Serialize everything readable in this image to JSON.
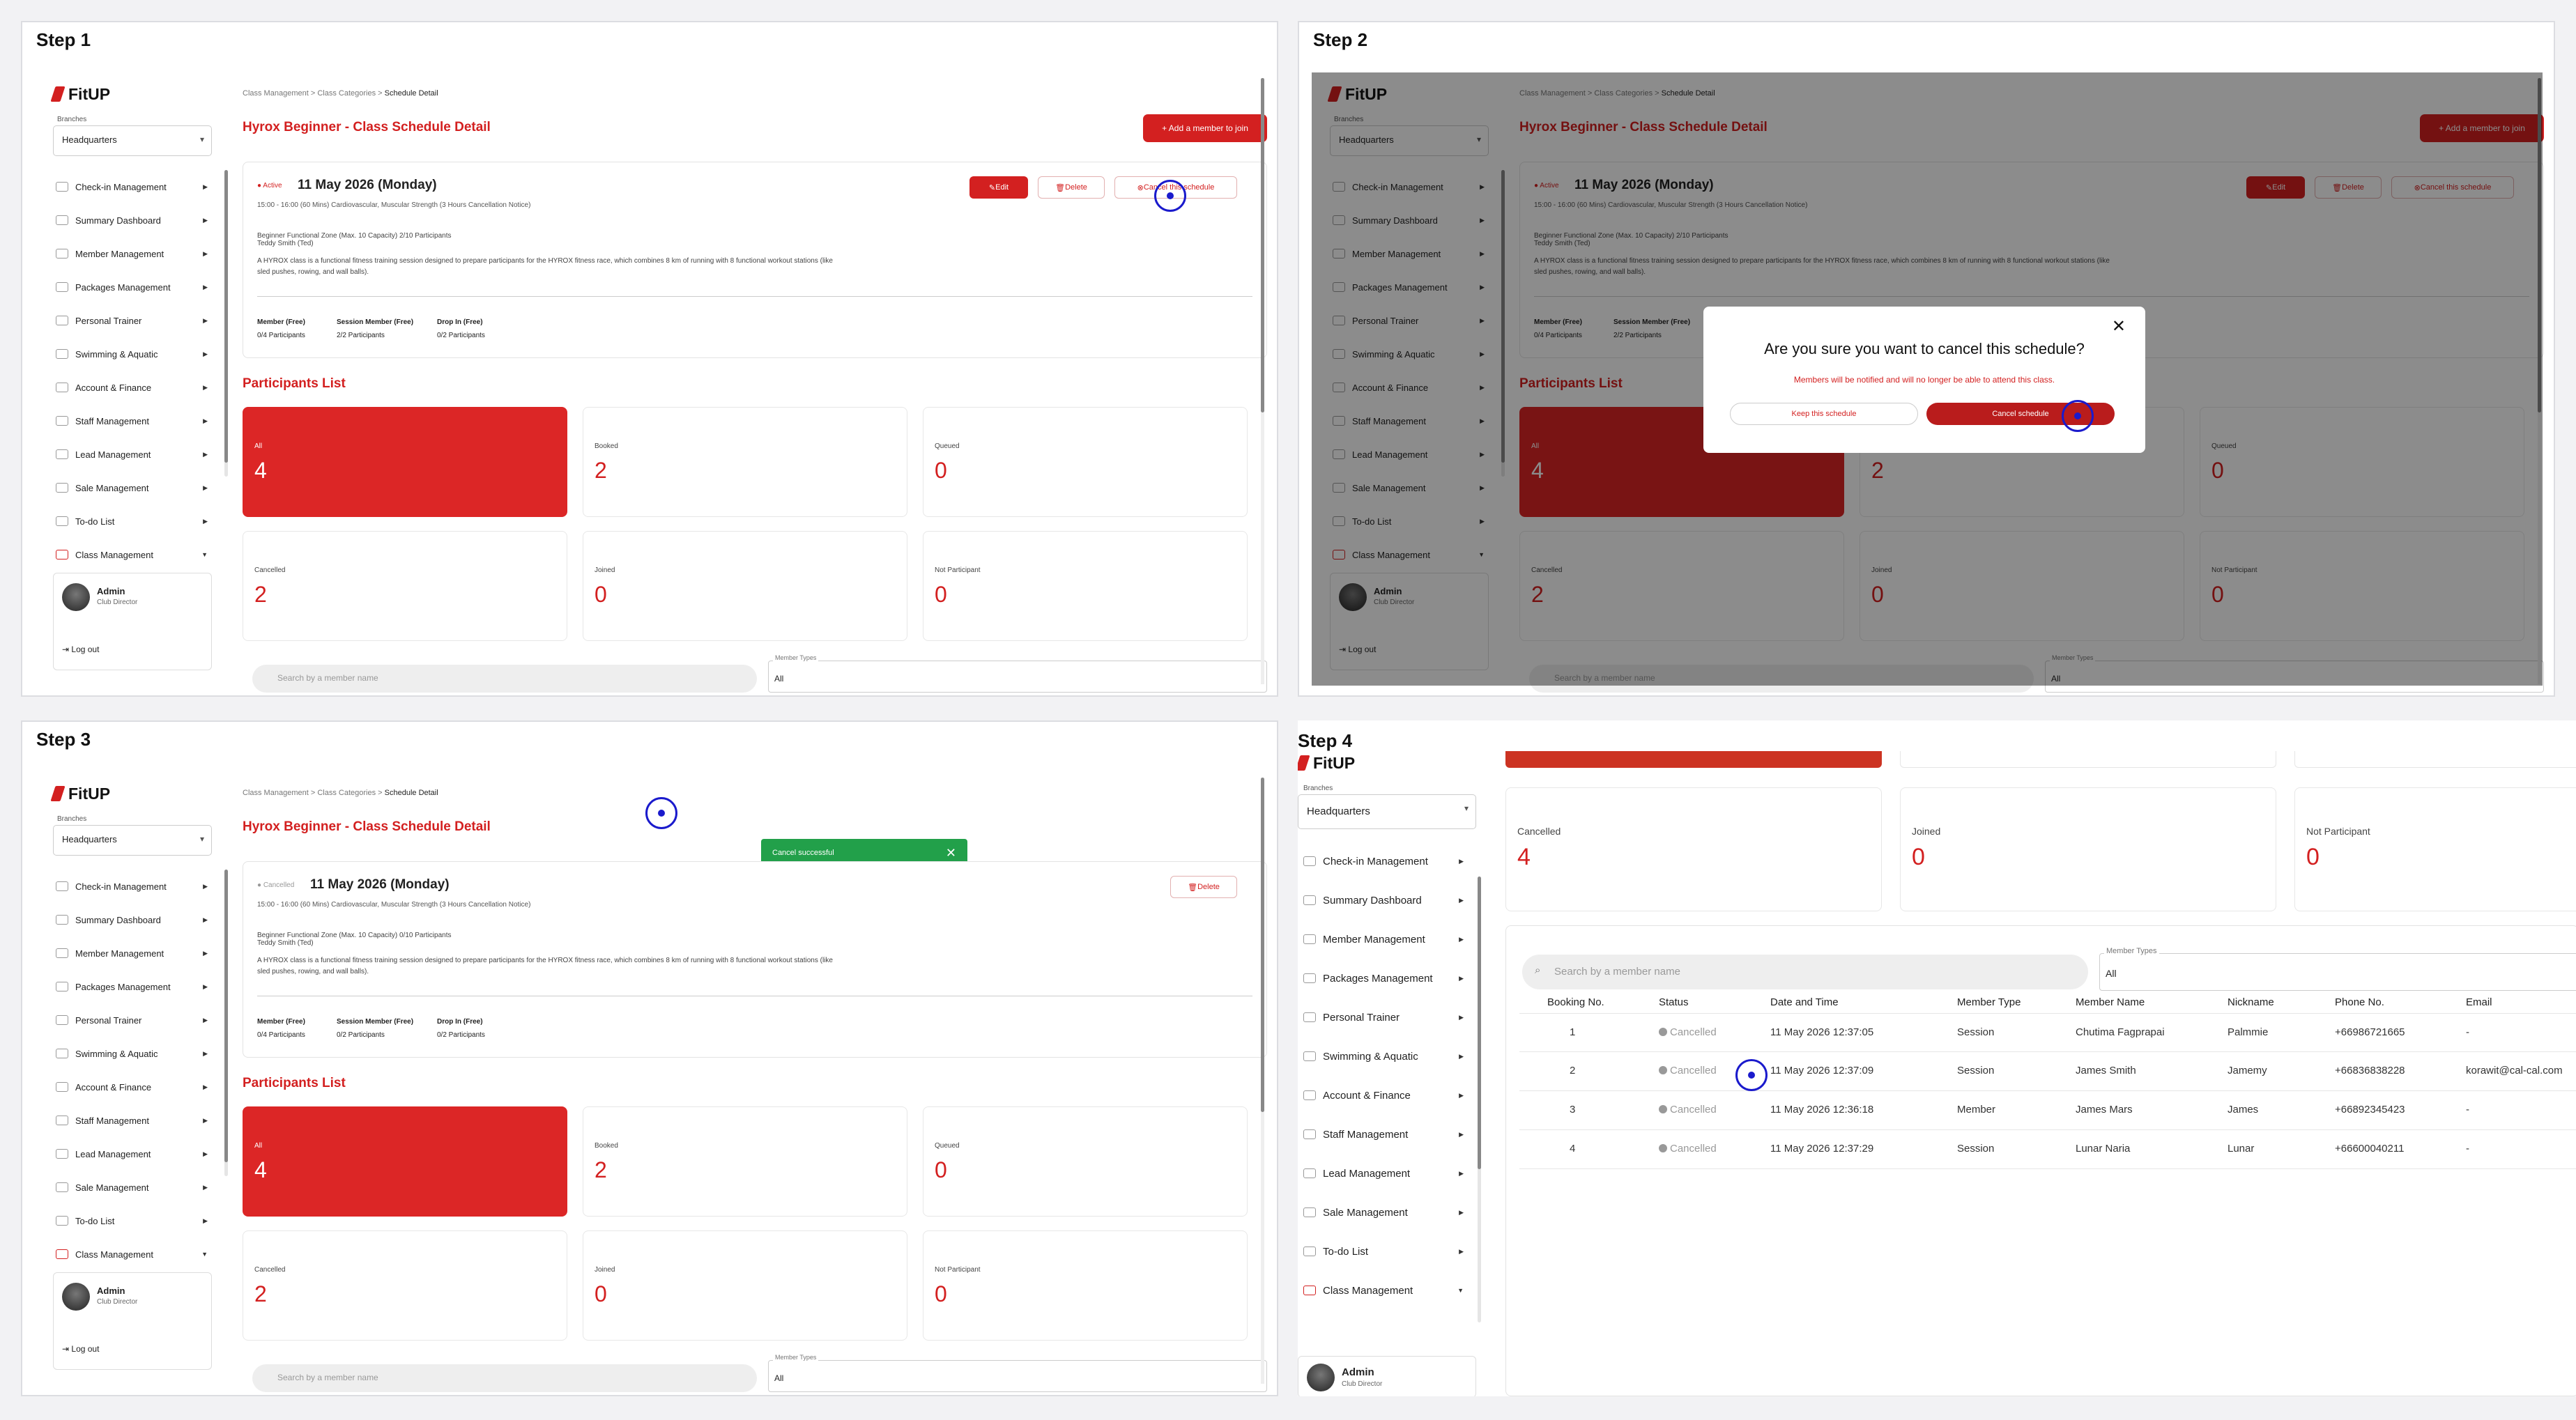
{
  "steps": {
    "s1": "Step 1",
    "s2": "Step 2",
    "s3": "Step 3",
    "s4": "Step 4"
  },
  "brand": {
    "logo": "FitUP"
  },
  "branch": {
    "label": "Branches",
    "value": "Headquarters"
  },
  "menu": [
    {
      "label": "Check-in Management",
      "icon": "checkin-icon"
    },
    {
      "label": "Summary Dashboard",
      "icon": "dashboard-icon"
    },
    {
      "label": "Member Management",
      "icon": "member-icon"
    },
    {
      "label": "Packages Management",
      "icon": "package-icon"
    },
    {
      "label": "Personal Trainer",
      "icon": "trainer-icon"
    },
    {
      "label": "Swimming & Aquatic",
      "icon": "swim-icon"
    },
    {
      "label": "Account & Finance",
      "icon": "finance-icon"
    },
    {
      "label": "Staff Management",
      "icon": "staff-icon"
    },
    {
      "label": "Lead Management",
      "icon": "lead-icon"
    },
    {
      "label": "Sale Management",
      "icon": "sale-icon"
    },
    {
      "label": "To-do List",
      "icon": "todo-icon"
    },
    {
      "label": "Class Management",
      "icon": "class-icon"
    }
  ],
  "admin": {
    "name": "Admin",
    "role": "Club Director",
    "logout": "Log out"
  },
  "breadcrumb": {
    "a": "Class Management",
    "sep": ">",
    "b": "Class Categories",
    "c": "Schedule Detail"
  },
  "page_title": "Hyrox Beginner - Class Schedule Detail",
  "add_member": "+ Add a member to join",
  "schedule": {
    "status_active": "Active",
    "status_cancelled": "Cancelled",
    "date": "11 May 2026 (Monday)",
    "meta": "15:00 - 16:00 (60 Mins)     Cardiovascular, Muscular Strength     (3 Hours Cancellation Notice)",
    "meta2a": "Beginner      Functional Zone (Max. 10 Capacity)      2/10 Participants",
    "meta2b": "Beginner      Functional Zone (Max. 10 Capacity)      0/10 Participants",
    "trainer": "Teddy Smith (Ted)",
    "desc": "A HYROX class is a functional fitness training session designed to prepare participants for the HYROX fitness race, which combines 8 km of running with 8 functional workout stations (like sled pushes, rowing, and wall balls).",
    "q": [
      {
        "label": "Member (Free)",
        "val": "0/4 Participants"
      },
      {
        "label": "Session Member (Free)",
        "val": "2/2 Participants"
      },
      {
        "label": "Drop In (Free)",
        "val": "0/2 Participants"
      }
    ],
    "q3": [
      {
        "label": "Member (Free)",
        "val": "0/4 Participants"
      },
      {
        "label": "Session Member (Free)",
        "val": "0/2 Participants"
      },
      {
        "label": "Drop In (Free)",
        "val": "0/2 Participants"
      }
    ],
    "edit": "Edit",
    "delete": "Delete",
    "cancel": "Cancel this schedule"
  },
  "participants_title": "Participants List",
  "stats": [
    {
      "label": "All",
      "value": "4"
    },
    {
      "label": "Booked",
      "value": "2"
    },
    {
      "label": "Queued",
      "value": "0"
    },
    {
      "label": "Cancelled",
      "value": "2"
    },
    {
      "label": "Joined",
      "value": "0"
    },
    {
      "label": "Not Participant",
      "value": "0"
    }
  ],
  "search_placeholder": "Search by a member name",
  "member_type": {
    "label": "Member Types",
    "value": "All"
  },
  "dialog": {
    "question": "Are you sure you want to cancel this schedule?",
    "sub": "Members will be notified and will no longer be able to attend this class.",
    "keep": "Keep this schedule",
    "confirm": "Cancel schedule",
    "close": "✕"
  },
  "toast": {
    "text": "Cancel successful",
    "close": "✕"
  },
  "step4": {
    "stats": [
      {
        "label": "Cancelled",
        "value": "4"
      },
      {
        "label": "Joined",
        "value": "0"
      },
      {
        "label": "Not Participant",
        "value": "0"
      }
    ],
    "headers": [
      "Booking No.",
      "Status",
      "Date and Time",
      "Member Type",
      "Member Name",
      "Nickname",
      "Phone No.",
      "Email"
    ],
    "rows": [
      [
        "1",
        "Cancelled",
        "11 May 2026 12:37:05",
        "Session",
        "Chutima Fagprapai",
        "Palmmie",
        "+66986721665",
        "-"
      ],
      [
        "2",
        "Cancelled",
        "11 May 2026 12:37:09",
        "Session",
        "James Smith",
        "Jamemy",
        "+66836838228",
        "korawit@cal-cal.com"
      ],
      [
        "3",
        "Cancelled",
        "11 May 2026 12:36:18",
        "Member",
        "James Mars",
        "James",
        "+66892345423",
        "-"
      ],
      [
        "4",
        "Cancelled",
        "11 May 2026 12:37:29",
        "Session",
        "Lunar Naria",
        "Lunar",
        "+66600040211",
        "-"
      ]
    ]
  },
  "colors": {
    "brand": "#d32020",
    "toast": "#22a04a",
    "cursor": "#1a1acc"
  }
}
